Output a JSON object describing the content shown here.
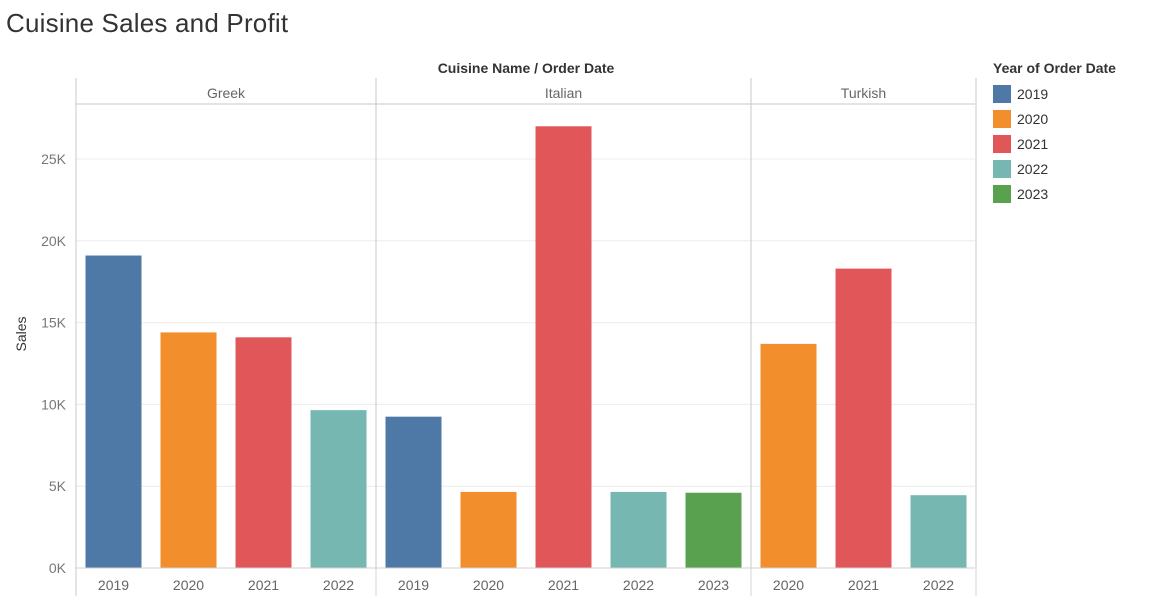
{
  "title": "Cuisine Sales and Profit",
  "legend": {
    "title": "Year of Order Date",
    "items": [
      {
        "label": "2019",
        "color": "#4e79a7"
      },
      {
        "label": "2020",
        "color": "#f28e2b"
      },
      {
        "label": "2021",
        "color": "#e15759"
      },
      {
        "label": "2022",
        "color": "#76b7b2"
      },
      {
        "label": "2023",
        "color": "#59a14f"
      }
    ]
  },
  "chart_data": {
    "type": "bar",
    "title": "Cuisine Sales and Profit",
    "header": "Cuisine Name  /  Order Date",
    "ylabel": "Sales",
    "ylim": [
      0,
      28000
    ],
    "yticks": [
      0,
      5000,
      10000,
      15000,
      20000,
      25000
    ],
    "ytick_labels": [
      "0K",
      "5K",
      "10K",
      "15K",
      "20K",
      "25K"
    ],
    "grid": "horizontal",
    "legend_position": "right",
    "panels": [
      {
        "name": "Greek",
        "bars": [
          {
            "year": "2019",
            "value": 19100
          },
          {
            "year": "2020",
            "value": 14400
          },
          {
            "year": "2021",
            "value": 14100
          },
          {
            "year": "2022",
            "value": 9650
          }
        ]
      },
      {
        "name": "Italian",
        "bars": [
          {
            "year": "2019",
            "value": 9250
          },
          {
            "year": "2020",
            "value": 4650
          },
          {
            "year": "2021",
            "value": 27000
          },
          {
            "year": "2022",
            "value": 4650
          },
          {
            "year": "2023",
            "value": 4600
          }
        ]
      },
      {
        "name": "Turkish",
        "bars": [
          {
            "year": "2020",
            "value": 13700
          },
          {
            "year": "2021",
            "value": 18300
          },
          {
            "year": "2022",
            "value": 4450
          }
        ]
      }
    ]
  }
}
